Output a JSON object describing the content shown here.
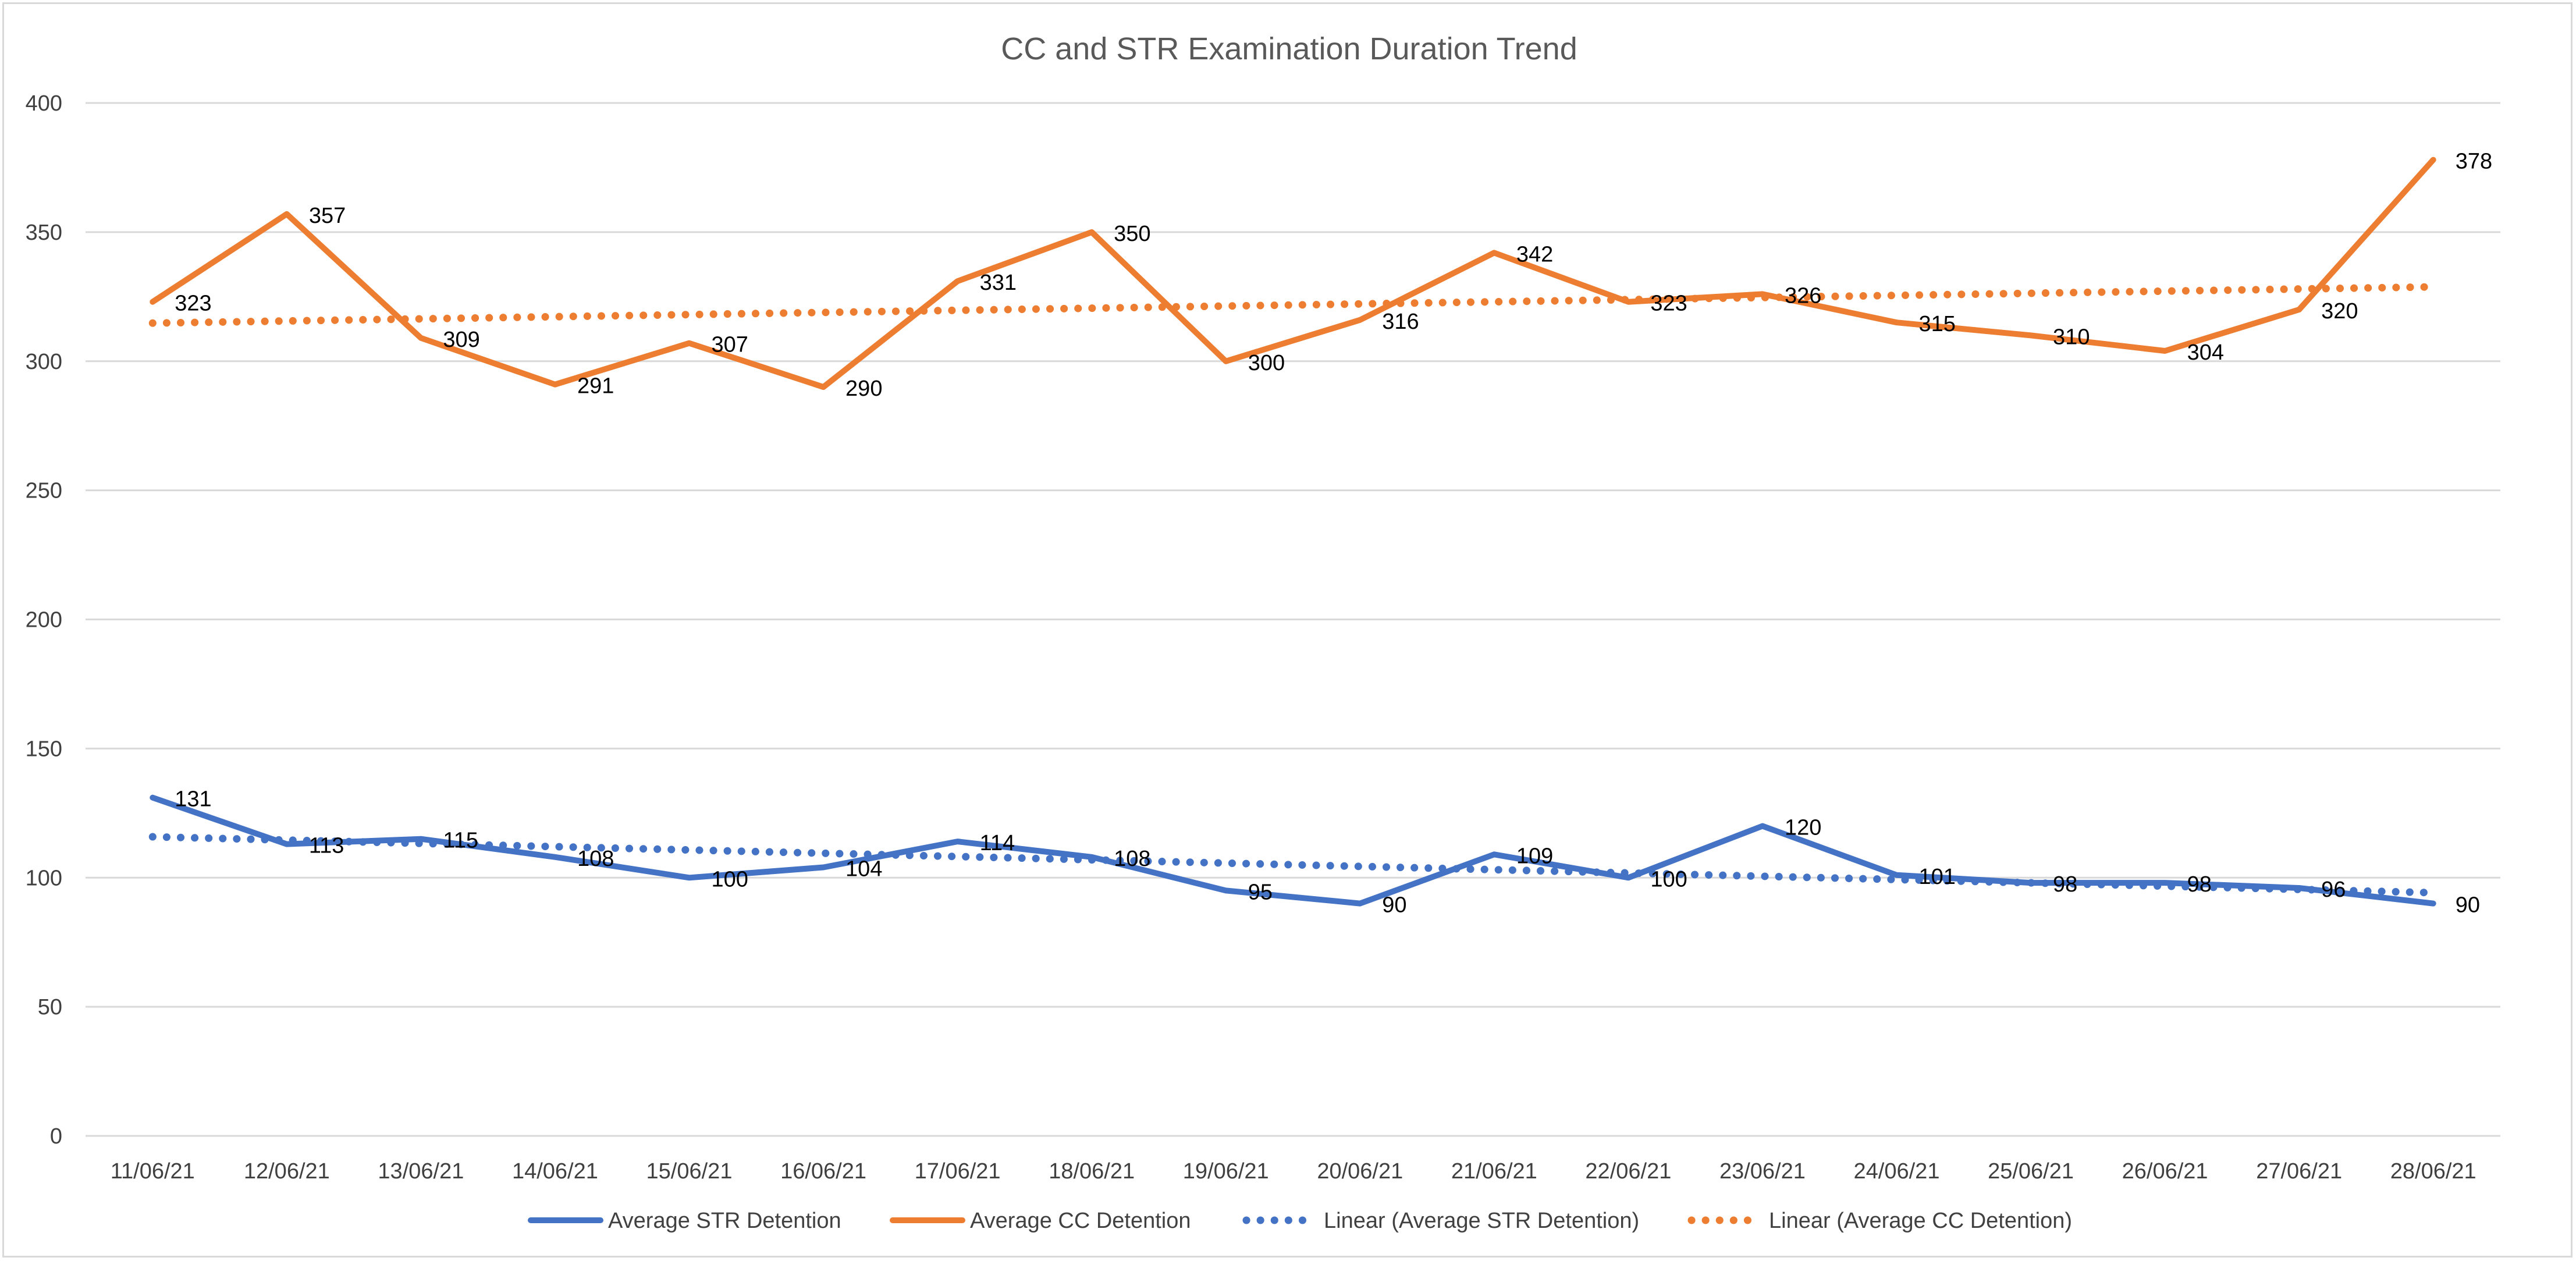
{
  "chart_data": {
    "type": "line",
    "title": "CC and STR  Examination Duration Trend",
    "xlabel": "",
    "ylabel": "",
    "ylim": [
      0,
      400
    ],
    "yticks": [
      0,
      50,
      100,
      150,
      200,
      250,
      300,
      350,
      400
    ],
    "grid": true,
    "legend_position": "bottom",
    "categories": [
      "11/06/21",
      "12/06/21",
      "13/06/21",
      "14/06/21",
      "15/06/21",
      "16/06/21",
      "17/06/21",
      "18/06/21",
      "19/06/21",
      "20/06/21",
      "21/06/21",
      "22/06/21",
      "23/06/21",
      "24/06/21",
      "25/06/21",
      "26/06/21",
      "27/06/21",
      "28/06/21"
    ],
    "series": [
      {
        "name": "Average STR Detention",
        "color": "#4472C4",
        "style": "solid",
        "values": [
          131,
          113,
          115,
          108,
          100,
          104,
          114,
          108,
          95,
          90,
          109,
          100,
          120,
          101,
          98,
          98,
          96,
          90
        ]
      },
      {
        "name": "Average CC Detention",
        "color": "#ED7D31",
        "style": "solid",
        "values": [
          323,
          357,
          309,
          291,
          307,
          290,
          331,
          350,
          300,
          316,
          342,
          323,
          326,
          315,
          310,
          304,
          320,
          378
        ]
      }
    ],
    "trendlines": [
      {
        "name": "Linear (Average STR Detention)",
        "of": "Average STR Detention",
        "color": "#4472C4",
        "style": "dotted",
        "type": "linear"
      },
      {
        "name": "Linear (Average CC Detention)",
        "of": "Average CC Detention",
        "color": "#ED7D31",
        "style": "dotted",
        "type": "linear"
      }
    ]
  }
}
